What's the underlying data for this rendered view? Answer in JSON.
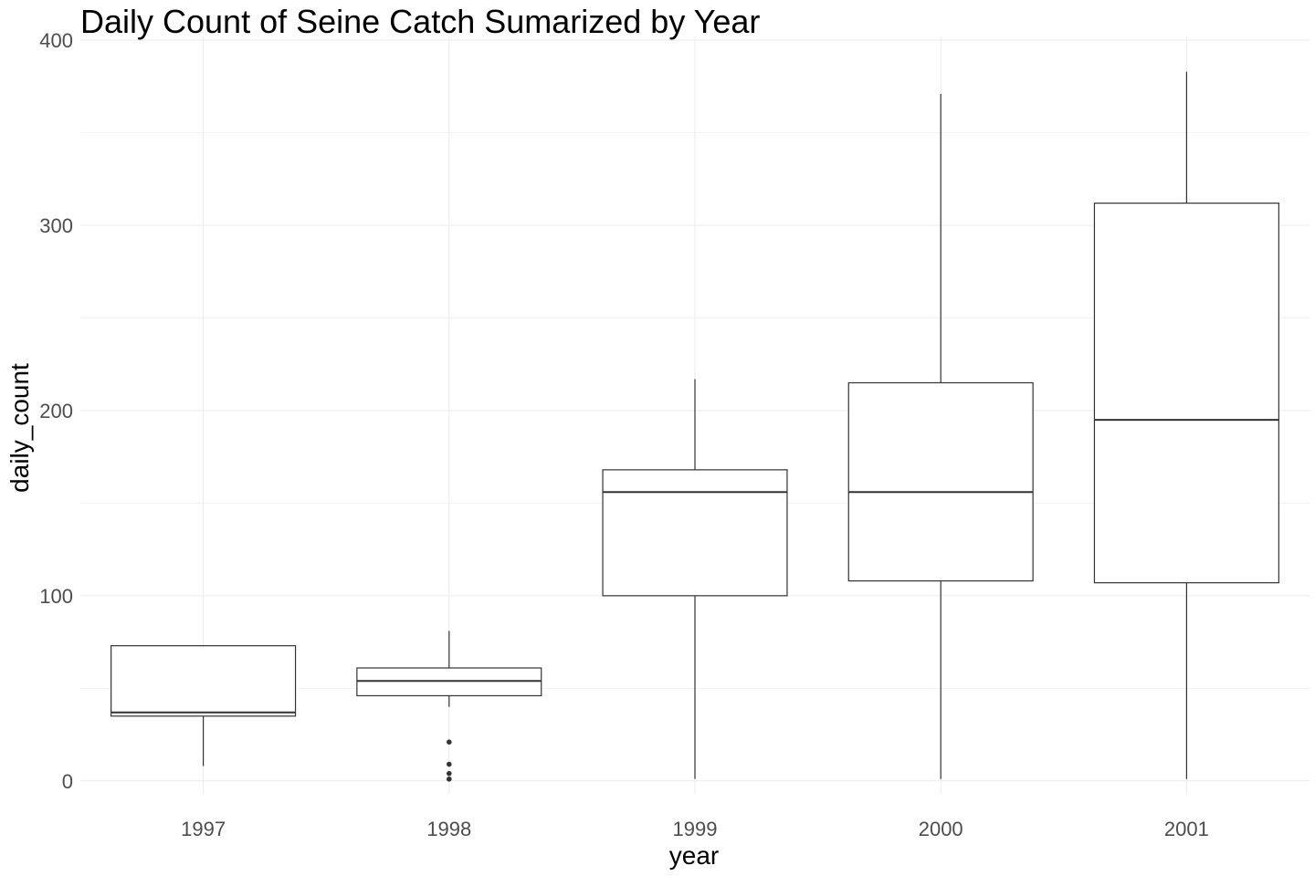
{
  "chart_data": {
    "type": "box",
    "title": "Daily Count of Seine Catch Sumarized by Year",
    "xlabel": "year",
    "ylabel": "daily_count",
    "ylim": [
      -7,
      402
    ],
    "yticks": [
      0,
      100,
      200,
      300,
      400
    ],
    "grid": true,
    "legend": "none",
    "categories": [
      "1997",
      "1998",
      "1999",
      "2000",
      "2001"
    ],
    "boxes": [
      {
        "x": "1997",
        "whisker_low": 8,
        "q1": 35,
        "median": 37,
        "q3": 73,
        "whisker_high": 73,
        "outliers": []
      },
      {
        "x": "1998",
        "whisker_low": 40,
        "q1": 46,
        "median": 54,
        "q3": 61,
        "whisker_high": 81,
        "outliers": [
          21,
          9,
          4,
          1
        ]
      },
      {
        "x": "1999",
        "whisker_low": 1,
        "q1": 100,
        "median": 156,
        "q3": 168,
        "whisker_high": 217,
        "outliers": []
      },
      {
        "x": "2000",
        "whisker_low": 1,
        "q1": 108,
        "median": 156,
        "q3": 215,
        "whisker_high": 371,
        "outliers": []
      },
      {
        "x": "2001",
        "whisker_low": 1,
        "q1": 107,
        "median": 195,
        "q3": 312,
        "whisker_high": 383,
        "outliers": []
      }
    ],
    "colors": {
      "box_line": "#333333",
      "box_fill": "#ffffff",
      "grid": "#ebebeb",
      "tick_text": "#4d4d4d"
    }
  }
}
